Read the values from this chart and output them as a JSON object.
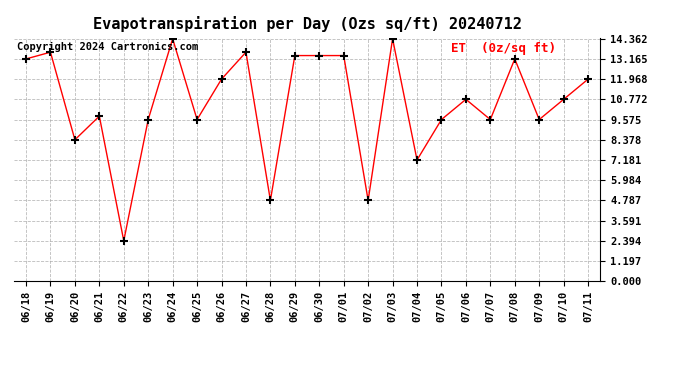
{
  "title": "Evapotranspiration per Day (Ozs sq/ft) 20240712",
  "legend_label": "ET  (0z/sq ft)",
  "copyright": "Copyright 2024 Cartronics.com",
  "dates": [
    "06/18",
    "06/19",
    "06/20",
    "06/21",
    "06/22",
    "06/23",
    "06/24",
    "06/25",
    "06/26",
    "06/27",
    "06/28",
    "06/29",
    "06/30",
    "07/01",
    "07/02",
    "07/03",
    "07/04",
    "07/05",
    "07/06",
    "07/07",
    "07/08",
    "07/09",
    "07/10",
    "07/11"
  ],
  "values": [
    13.165,
    13.564,
    8.378,
    9.775,
    2.394,
    9.575,
    14.362,
    9.575,
    11.968,
    13.564,
    4.787,
    13.364,
    13.364,
    13.364,
    4.787,
    14.362,
    7.181,
    9.575,
    10.772,
    9.575,
    13.165,
    9.575,
    10.772,
    11.968
  ],
  "line_color": "red",
  "marker_color": "black",
  "background_color": "white",
  "grid_color": "#aaaaaa",
  "title_fontsize": 11,
  "tick_fontsize": 7.5,
  "legend_fontsize": 9,
  "copyright_fontsize": 7.5,
  "ylim": [
    0,
    14.362
  ],
  "yticks": [
    0.0,
    1.197,
    2.394,
    3.591,
    4.787,
    5.984,
    7.181,
    8.378,
    9.575,
    10.772,
    11.968,
    13.165,
    14.362
  ]
}
